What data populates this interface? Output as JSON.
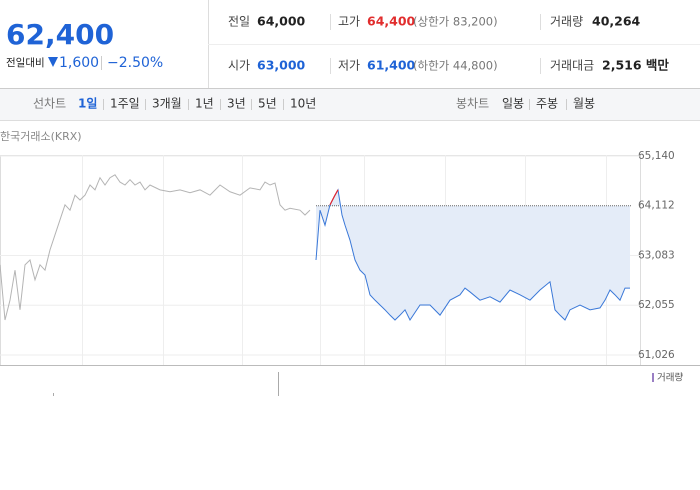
{
  "quote": {
    "price": "62,400",
    "change_label": "전일대비",
    "change": "1,600",
    "change_rate": "−2.50%"
  },
  "summary": [
    {
      "label": "전일",
      "value": "64,000"
    },
    {
      "label": "고가",
      "value": "64,400",
      "note": "(상한가 83,200)"
    },
    {
      "label": "거래량",
      "value": "40,264"
    },
    {
      "label": "시가",
      "value": "63,000"
    },
    {
      "label": "저가",
      "value": "61,400",
      "note": "(하한가 44,800)"
    },
    {
      "label": "거래대금",
      "value": "2,516 백만"
    }
  ],
  "nav": {
    "line_label": "선차트",
    "line_periods": [
      "1일",
      "1주일",
      "3개월",
      "1년",
      "3년",
      "5년",
      "10년"
    ],
    "candle_label": "봉차트",
    "candle_periods": [
      "일봉",
      "주봉",
      "월봉"
    ]
  },
  "chart_data": {
    "type": "line",
    "source": "한국거래소(KRX)",
    "volume_legend": "거래량",
    "xlim": [
      0,
      632
    ],
    "ylim": [
      60820,
      65160
    ],
    "yticks": [
      {
        "value": 65140,
        "label": "65,140"
      },
      {
        "value": 64112,
        "label": "64,112"
      },
      {
        "value": 63083,
        "label": "63,083"
      },
      {
        "value": 62055,
        "label": "62,055"
      },
      {
        "value": 61026,
        "label": "61,026"
      }
    ],
    "grid": true,
    "series": [
      {
        "color": "#b4b4b4",
        "x": [
          0,
          5,
          10,
          15,
          20,
          25,
          30,
          35,
          40,
          45,
          50,
          55,
          60,
          65,
          70,
          75,
          80,
          85,
          90,
          95,
          100,
          105,
          110,
          115,
          120,
          125,
          130,
          135,
          140,
          145,
          150,
          160,
          170,
          180,
          190,
          200,
          210,
          220,
          230,
          240,
          250,
          260,
          265,
          270,
          275,
          280,
          285,
          290,
          300,
          305,
          310
        ],
        "values": [
          62890,
          61750,
          62160,
          62780,
          61960,
          62890,
          62990,
          62580,
          62890,
          62780,
          63200,
          63510,
          63820,
          64130,
          64020,
          64330,
          64230,
          64330,
          64540,
          64440,
          64690,
          64540,
          64690,
          64750,
          64600,
          64540,
          64650,
          64540,
          64600,
          64440,
          64540,
          64440,
          64400,
          64440,
          64380,
          64440,
          64330,
          64540,
          64400,
          64330,
          64480,
          64440,
          64600,
          64540,
          64580,
          64130,
          64020,
          64060,
          64020,
          63920,
          64020
        ]
      },
      {
        "color": "#3a78d8",
        "up_color": "#e8242b",
        "fill": "#e4ecf8",
        "x": [
          316,
          320,
          325,
          330,
          335,
          338,
          342,
          345,
          350,
          355,
          360,
          365,
          370,
          375,
          380,
          385,
          390,
          395,
          400,
          405,
          410,
          420,
          430,
          440,
          450,
          460,
          465,
          470,
          480,
          490,
          500,
          510,
          520,
          530,
          540,
          550,
          555,
          560,
          565,
          570,
          580,
          590,
          600,
          605,
          610,
          615,
          620,
          625,
          630
        ],
        "values": [
          62990,
          64020,
          63710,
          64130,
          64330,
          64440,
          63920,
          63710,
          63400,
          62990,
          62780,
          62680,
          62270,
          62160,
          62060,
          61960,
          61850,
          61750,
          61850,
          61960,
          61750,
          62060,
          62060,
          61850,
          62160,
          62270,
          62410,
          62330,
          62160,
          62230,
          62120,
          62370,
          62270,
          62160,
          62370,
          62540,
          61960,
          61850,
          61750,
          61960,
          62060,
          61960,
          62000,
          62160,
          62370,
          62270,
          62160,
          62410,
          62410
        ]
      }
    ]
  }
}
